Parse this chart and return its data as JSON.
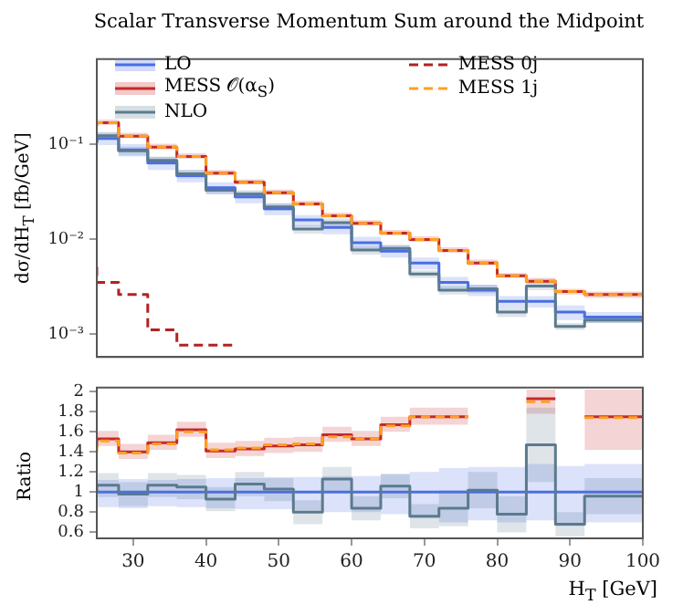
{
  "chart_data": [
    {
      "type": "step",
      "title": "Scalar Transverse Momentum Sum around the Midpoint",
      "ylabel": "dσ/dH$_{T}$ [fb/GeV]",
      "log": "y",
      "legend": "top",
      "tick_labels": "y",
      "grid": false,
      "x": [
        25,
        28,
        32,
        36,
        40,
        44,
        48,
        52,
        56,
        60,
        64,
        68,
        72,
        76,
        80,
        84,
        88,
        92,
        96,
        100
      ],
      "xlim": [
        25,
        100
      ],
      "xticks": [
        30,
        40,
        50,
        60,
        70,
        80,
        90,
        100
      ],
      "ylim": [
        0.00057,
        0.8
      ],
      "yticks": [
        {
          "value": 0.001,
          "label": "10⁻³"
        },
        {
          "value": 0.01,
          "label": "10⁻²"
        },
        {
          "value": 0.1,
          "label": "10⁻¹"
        }
      ],
      "series": [
        {
          "name": "LO",
          "color": "#4a6fe3",
          "line_style": "solid",
          "values": [
            0.105,
            0.116,
            0.088,
            0.064,
            0.047,
            0.035,
            0.028,
            0.021,
            0.016,
            0.0133,
            0.0092,
            0.0075,
            0.0056,
            0.0035,
            0.0029,
            0.0022,
            0.0022,
            0.0017,
            0.0015,
            0.0015
          ],
          "lower": [
            0.089,
            0.099,
            0.075,
            0.054,
            0.04,
            0.03,
            0.024,
            0.018,
            0.0136,
            0.0113,
            0.0078,
            0.0064,
            0.0048,
            0.003,
            0.0025,
            0.0019,
            0.0019,
            0.0014,
            0.0013,
            0.0013
          ],
          "upper": [
            0.121,
            0.133,
            0.101,
            0.074,
            0.054,
            0.04,
            0.032,
            0.024,
            0.018,
            0.0153,
            0.0106,
            0.0086,
            0.0064,
            0.004,
            0.0033,
            0.0025,
            0.0025,
            0.002,
            0.0017,
            0.0017
          ]
        },
        {
          "name": "MESS 𝒪(α$_{S}$)",
          "color": "#c62828",
          "line_style": "solid",
          "values": [
            0.158,
            0.17,
            0.123,
            0.094,
            0.075,
            0.05,
            0.04,
            0.031,
            0.0236,
            0.0177,
            0.0147,
            0.0116,
            0.0099,
            0.0076,
            0.0056,
            0.0041,
            0.0036,
            0.0028,
            0.0026,
            0.0026
          ],
          "lower": [
            0.15,
            0.162,
            0.117,
            0.089,
            0.071,
            0.0475,
            0.038,
            0.0295,
            0.0224,
            0.0168,
            0.014,
            0.011,
            0.0094,
            0.0072,
            0.0053,
            0.0039,
            0.0034,
            0.0026,
            0.0024,
            0.0024
          ],
          "upper": [
            0.171,
            0.184,
            0.133,
            0.102,
            0.081,
            0.054,
            0.043,
            0.0335,
            0.0255,
            0.0191,
            0.0159,
            0.0125,
            0.0107,
            0.0082,
            0.0061,
            0.0044,
            0.0039,
            0.003,
            0.0028,
            0.0028
          ]
        },
        {
          "name": "NLO",
          "color": "#5b7a8e",
          "line_style": "solid",
          "values": [
            0.105,
            0.124,
            0.086,
            0.068,
            0.049,
            0.033,
            0.03,
            0.022,
            0.0128,
            0.015,
            0.0077,
            0.008,
            0.0043,
            0.0029,
            0.003,
            0.0017,
            0.0032,
            0.0012,
            0.0014,
            0.0014
          ],
          "lower": [
            0.0945,
            0.112,
            0.077,
            0.061,
            0.044,
            0.03,
            0.027,
            0.02,
            0.0115,
            0.0135,
            0.0069,
            0.0072,
            0.0039,
            0.0026,
            0.0027,
            0.0015,
            0.0029,
            0.0011,
            0.0013,
            0.0013
          ],
          "upper": [
            0.116,
            0.136,
            0.095,
            0.075,
            0.054,
            0.036,
            0.033,
            0.024,
            0.0141,
            0.0165,
            0.0085,
            0.0088,
            0.0047,
            0.0032,
            0.0033,
            0.0019,
            0.0035,
            0.0013,
            0.0015,
            0.0015
          ]
        },
        {
          "name": "MESS 0j",
          "color": "#b22222",
          "line_style": "dashed",
          "x": [
            25,
            28,
            32,
            36,
            40,
            44
          ],
          "values": [
            0.0051,
            0.0035,
            0.0026,
            0.0011,
            0.00076,
            0.00076
          ]
        },
        {
          "name": "MESS 1j",
          "color": "#ffa020",
          "line_style": "dashed",
          "values": [
            0.158,
            0.17,
            0.123,
            0.094,
            0.075,
            0.05,
            0.04,
            0.031,
            0.0236,
            0.0177,
            0.0147,
            0.0116,
            0.0099,
            0.0076,
            0.0056,
            0.0041,
            0.0036,
            0.0028,
            0.0026,
            0.0026
          ]
        }
      ]
    },
    {
      "type": "step",
      "ylabel": "Ratio",
      "xlabel": "H$_{T}$ [GeV]",
      "grid": false,
      "x": [
        25,
        28,
        32,
        36,
        40,
        44,
        48,
        52,
        56,
        60,
        64,
        68,
        72,
        76,
        80,
        84,
        88,
        92,
        96,
        100
      ],
      "xlim": [
        25,
        100
      ],
      "xticks": [
        30,
        40,
        50,
        60,
        70,
        80,
        90,
        100
      ],
      "ylim": [
        0.54,
        2.04
      ],
      "yticks": [
        0.6,
        0.8,
        1,
        1.2,
        1.4,
        1.6,
        1.8,
        2
      ],
      "series": [
        {
          "color": "#4a6fe3",
          "line_style": "solid",
          "values": [
            1,
            1,
            1,
            1,
            1,
            1,
            1,
            1,
            1,
            1,
            1,
            1,
            1,
            1,
            1,
            1,
            1,
            1,
            1,
            1
          ],
          "lower": [
            0.84,
            0.85,
            0.84,
            0.86,
            0.85,
            0.84,
            0.83,
            0.83,
            0.82,
            0.8,
            0.8,
            0.78,
            0.74,
            0.7,
            0.72,
            0.7,
            0.72,
            0.66,
            0.7,
            0.7
          ],
          "upper": [
            1.12,
            1.12,
            1.13,
            1.12,
            1.13,
            1.14,
            1.14,
            1.14,
            1.15,
            1.16,
            1.16,
            1.18,
            1.2,
            1.24,
            1.25,
            1.25,
            1.28,
            1.26,
            1.28,
            1.28
          ]
        },
        {
          "color": "#5b7a8e",
          "line_style": "solid",
          "values": [
            1,
            1.07,
            0.98,
            1.07,
            1.05,
            0.93,
            1.08,
            1.03,
            0.8,
            1.13,
            0.84,
            1.06,
            0.76,
            0.84,
            1.02,
            0.78,
            1.47,
            0.68,
            0.96,
            0.96
          ],
          "lower": [
            0.88,
            0.95,
            0.86,
            0.95,
            0.93,
            0.81,
            0.96,
            0.91,
            0.68,
            1.01,
            0.72,
            0.94,
            0.64,
            0.66,
            0.84,
            0.6,
            1.1,
            0.56,
            0.78,
            0.78
          ],
          "upper": [
            1.12,
            1.19,
            1.1,
            1.19,
            1.17,
            1.05,
            1.2,
            1.15,
            0.92,
            1.25,
            0.96,
            1.18,
            0.88,
            1.02,
            1.2,
            0.96,
            1.84,
            0.8,
            1.14,
            1.14
          ]
        },
        {
          "color": "#c62828",
          "line_style": "solid",
          "x": [
            25,
            28,
            32,
            36,
            40,
            44,
            48,
            52,
            56,
            60,
            64,
            68,
            72,
            76
          ],
          "values": [
            1.45,
            1.53,
            1.4,
            1.49,
            1.62,
            1.41,
            1.43,
            1.46,
            1.47,
            1.57,
            1.53,
            1.67,
            1.75,
            1.75
          ],
          "lower": [
            1.38,
            1.46,
            1.33,
            1.42,
            1.55,
            1.34,
            1.36,
            1.39,
            1.4,
            1.5,
            1.46,
            1.6,
            1.67,
            1.67
          ],
          "upper": [
            1.53,
            1.61,
            1.48,
            1.57,
            1.7,
            1.49,
            1.51,
            1.54,
            1.55,
            1.65,
            1.61,
            1.75,
            1.84,
            1.84
          ]
        },
        {
          "color": "#c62828",
          "line_style": "solid",
          "x": [
            84,
            88
          ],
          "values": [
            1.93,
            1.93
          ],
          "lower": [
            1.78,
            1.78
          ],
          "upper": [
            2.02,
            2.02
          ]
        },
        {
          "color": "#c62828",
          "line_style": "solid",
          "x": [
            92,
            96,
            100
          ],
          "values": [
            1.75,
            1.75,
            1.75
          ],
          "lower": [
            1.42,
            1.42,
            1.42
          ],
          "upper": [
            2.02,
            2.02,
            2.02
          ]
        },
        {
          "color": "#ffa020",
          "line_style": "dashed",
          "x": [
            25,
            28,
            32,
            36,
            40,
            44,
            48,
            52,
            56,
            60,
            64,
            68,
            72,
            76
          ],
          "values": [
            1.4,
            1.51,
            1.39,
            1.48,
            1.6,
            1.42,
            1.44,
            1.47,
            1.48,
            1.55,
            1.53,
            1.66,
            1.75,
            1.75
          ]
        },
        {
          "color": "#ffa020",
          "line_style": "dashed",
          "x": [
            84,
            88
          ],
          "values": [
            1.9,
            1.9
          ]
        },
        {
          "color": "#ffa020",
          "line_style": "dashed",
          "x": [
            92,
            96,
            100
          ],
          "values": [
            1.74,
            1.74,
            1.74
          ]
        }
      ]
    }
  ]
}
